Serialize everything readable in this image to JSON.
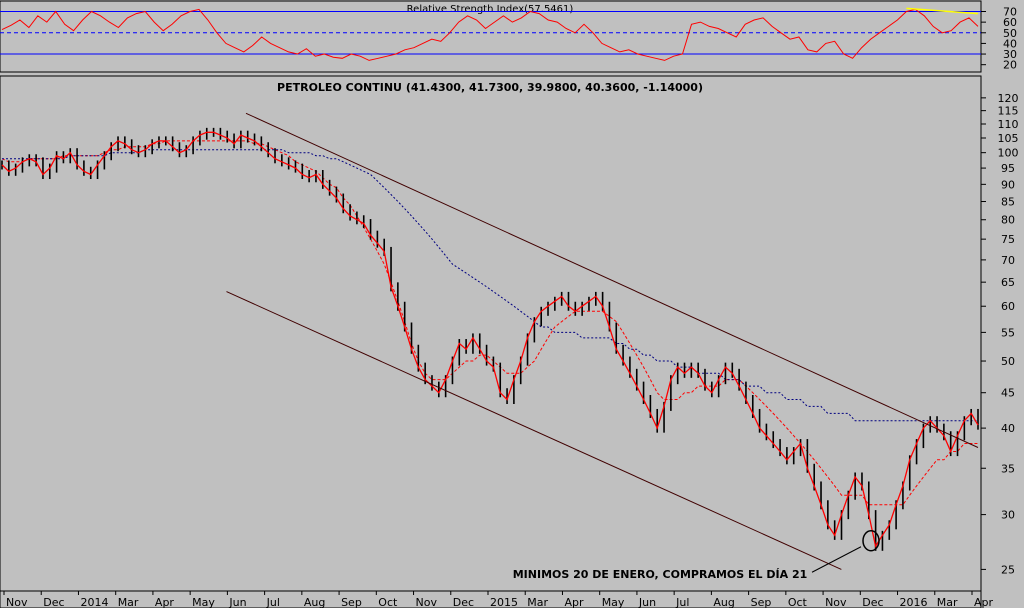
{
  "chart_data": [
    {
      "type": "line",
      "panel": "rsi",
      "title": "Relative Strength Index(57.5461)",
      "ylim": [
        15,
        78
      ],
      "yticks": [
        20,
        30,
        40,
        50,
        60,
        70
      ],
      "reference_lines": {
        "upper": 70,
        "middle": 50,
        "lower": 30
      },
      "colors": {
        "line": "#ff0000",
        "reference": "#0000ff",
        "divergence": "#ffff00"
      },
      "series": [
        {
          "values": [
            53,
            57,
            62,
            55,
            66,
            60,
            70,
            58,
            52,
            62,
            70,
            66,
            60,
            55,
            64,
            68,
            70,
            60,
            52,
            58,
            66,
            70,
            72,
            62,
            50,
            40,
            36,
            32,
            38,
            46,
            40,
            36,
            32,
            30,
            35,
            28,
            30,
            27,
            26,
            30,
            28,
            24,
            26,
            28,
            30,
            34,
            36,
            40,
            44,
            42,
            50,
            60,
            66,
            62,
            54,
            60,
            66,
            60,
            64,
            70,
            68,
            62,
            60,
            54,
            50,
            58,
            50,
            40,
            36,
            32,
            34,
            30,
            28,
            26,
            24,
            28,
            30,
            58,
            60,
            56,
            54,
            50,
            46,
            58,
            62,
            64,
            56,
            50,
            44,
            46,
            34,
            32,
            40,
            42,
            30,
            26,
            36,
            44,
            50,
            56,
            62,
            70,
            72,
            66,
            56,
            50,
            52,
            60,
            64,
            56
          ]
        }
      ],
      "annotations": [
        "divergence line (yellow) on the latest RSI peaks"
      ]
    },
    {
      "type": "line",
      "panel": "price",
      "title": "PETROLEO CONTINU (41.4300, 41.7300, 39.9800, 40.3600, -1.14000)",
      "y_scale": "log",
      "ylim": [
        23.5,
        124
      ],
      "yticks": [
        25,
        30,
        35,
        40,
        45,
        50,
        55,
        60,
        65,
        70,
        75,
        80,
        85,
        90,
        95,
        100,
        105,
        110,
        115,
        120
      ],
      "x_ticks": [
        "Nov",
        "Dec",
        "2014",
        "Mar",
        "Apr",
        "May",
        "Jun",
        "Jul",
        "Aug",
        "Sep",
        "Oct",
        "Nov",
        "Dec",
        "2015",
        "Mar",
        "Apr",
        "May",
        "Jun",
        "Jul",
        "Aug",
        "Sep",
        "Oct",
        "Nov",
        "Dec",
        "2016",
        "Mar",
        "Apr"
      ],
      "colors": {
        "price": "#ff0000",
        "bars": "#000000",
        "ma_short": "#ff0000",
        "ma_long": "#000080",
        "channel": "#400000"
      },
      "series": [
        {
          "name": "",
          "values": [
            96,
            94,
            95,
            97,
            98,
            97,
            93,
            95,
            99,
            98,
            100,
            96,
            94,
            93,
            96,
            99,
            102,
            104,
            103,
            101,
            100,
            101,
            103,
            104,
            104,
            102,
            100,
            101,
            104,
            106,
            107,
            107,
            106,
            105,
            103,
            106,
            105,
            104,
            102,
            100,
            98,
            97,
            96,
            95,
            93,
            92,
            93,
            90,
            88,
            86,
            83,
            81,
            80,
            79,
            76,
            74,
            72,
            64,
            60,
            56,
            52,
            49,
            47,
            46,
            45,
            47,
            50,
            53,
            52,
            54,
            52,
            50,
            49,
            45,
            44,
            47,
            50,
            54,
            57,
            59,
            60,
            61,
            62,
            60,
            59,
            60,
            61,
            62,
            60,
            56,
            52,
            50,
            48,
            46,
            44,
            42,
            40,
            43,
            47,
            49,
            48,
            49,
            48,
            46,
            45,
            47,
            49,
            48,
            46,
            44,
            42,
            40,
            39,
            38,
            37,
            36,
            37,
            38,
            35,
            33,
            31,
            29,
            28,
            30,
            32,
            34,
            33,
            30,
            27,
            28,
            29,
            31,
            33,
            36,
            38,
            40,
            41,
            40,
            39,
            37,
            39,
            41,
            42,
            40.4
          ]
        }
      ],
      "moving_averages": [
        {
          "name": "",
          "style": "dashed",
          "values": [
            98,
            97,
            97,
            97,
            98,
            98,
            98,
            98,
            98,
            99,
            99,
            99,
            99,
            99,
            99,
            100,
            101,
            101,
            102,
            102,
            102,
            102,
            103,
            103,
            104,
            104,
            104,
            104,
            104,
            104,
            104,
            104,
            104,
            104,
            104,
            104,
            104,
            103,
            103,
            102,
            101,
            100,
            99,
            97,
            96,
            95,
            94,
            92,
            90,
            89,
            86,
            84,
            81,
            78,
            75,
            72,
            69,
            65,
            61,
            57,
            53,
            50,
            48,
            47,
            47,
            47,
            48,
            49,
            50,
            50,
            51,
            51,
            50,
            49,
            48,
            48,
            48,
            49,
            50,
            52,
            54,
            56,
            57,
            58,
            59,
            59,
            59,
            59,
            59,
            58,
            57,
            55,
            53,
            51,
            49,
            47,
            45,
            44,
            44,
            44,
            45,
            45,
            46,
            46,
            46,
            46,
            47,
            47,
            47,
            46,
            45,
            44,
            43,
            42,
            41,
            40,
            39,
            38,
            37,
            36,
            35,
            34,
            33,
            32,
            32,
            32,
            32,
            31,
            31,
            31,
            31,
            31,
            31,
            32,
            33,
            34,
            35,
            36,
            36,
            37,
            37,
            38,
            38,
            38
          ]
        },
        {
          "name": "",
          "style": "dotted",
          "values": [
            98,
            98,
            98,
            98,
            98,
            98,
            98,
            98,
            98,
            98,
            99,
            99,
            99,
            99,
            99,
            99,
            100,
            100,
            100,
            100,
            100,
            101,
            101,
            101,
            101,
            101,
            101,
            101,
            101,
            101,
            101,
            101,
            101,
            101,
            101,
            101,
            101,
            101,
            101,
            101,
            101,
            101,
            100,
            100,
            100,
            100,
            99,
            99,
            98,
            98,
            97,
            96,
            95,
            94,
            93,
            91,
            89,
            87,
            85,
            83,
            81,
            79,
            77,
            75,
            73,
            71,
            69,
            68,
            67,
            66,
            65,
            64,
            63,
            62,
            61,
            60,
            59,
            58,
            57,
            56,
            56,
            55,
            55,
            55,
            55,
            54,
            54,
            54,
            54,
            54,
            53,
            53,
            52,
            52,
            51,
            51,
            50,
            50,
            50,
            49,
            49,
            49,
            48,
            48,
            48,
            48,
            47,
            47,
            47,
            46,
            46,
            46,
            45,
            45,
            45,
            44,
            44,
            44,
            43,
            43,
            43,
            42,
            42,
            42,
            42,
            41,
            41,
            41,
            41,
            41,
            41,
            41,
            41,
            41,
            41,
            41,
            41,
            41,
            41,
            41,
            41,
            41,
            41,
            41
          ]
        }
      ],
      "trendlines": [
        {
          "name": "upper channel",
          "from": [
            0.25,
            114
          ],
          "to": [
            1.0,
            37.5
          ]
        },
        {
          "name": "lower channel",
          "from": [
            0.23,
            63
          ],
          "to": [
            0.86,
            25
          ]
        }
      ],
      "annotations": [
        {
          "text": "MINIMOS 20 DE ENERO, COMPRAMOS EL DÍA 21",
          "marker": "circle",
          "y": 27.5
        }
      ]
    }
  ]
}
